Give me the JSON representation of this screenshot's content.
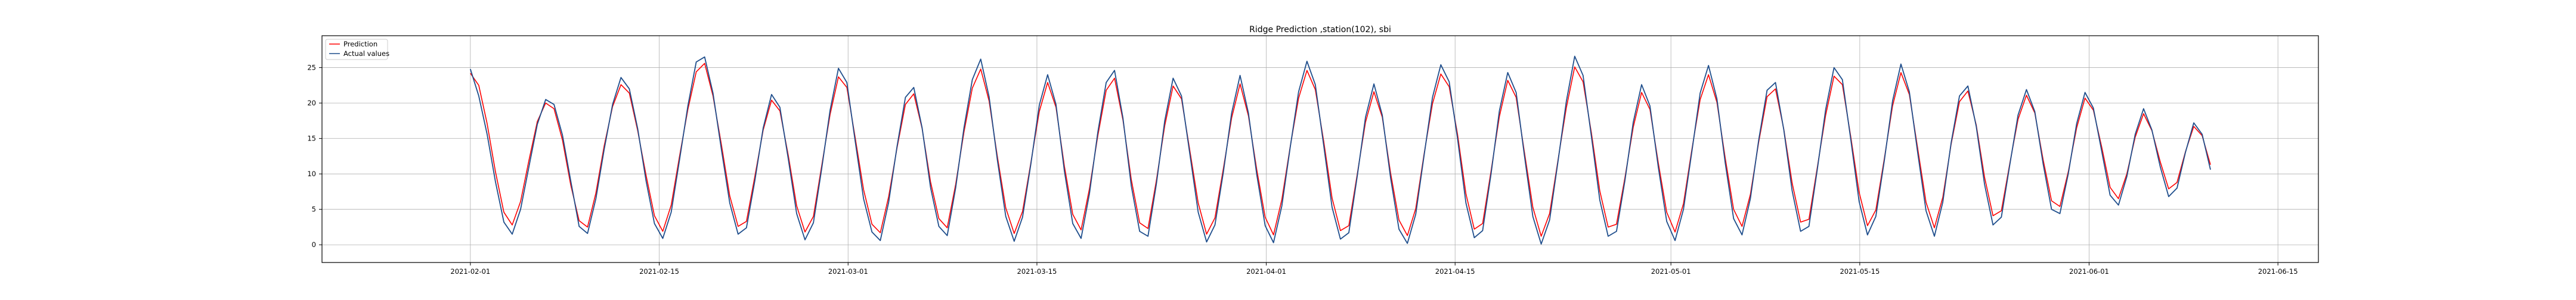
{
  "chart_data": {
    "type": "line",
    "title": "Ridge Prediction ,station(102), sbi",
    "xlabel": "",
    "ylabel": "",
    "x_range": [
      "2021-02-01",
      "2021-06-10"
    ],
    "xlim": [
      "2021-01-21",
      "2021-06-18"
    ],
    "ylim": [
      -2.5,
      29.5
    ],
    "x_ticks": [
      "2021-02-01",
      "2021-02-15",
      "2021-03-01",
      "2021-03-15",
      "2021-04-01",
      "2021-04-15",
      "2021-05-01",
      "2021-05-15",
      "2021-06-01",
      "2021-06-15"
    ],
    "y_ticks": [
      0,
      5,
      10,
      15,
      20,
      25
    ],
    "grid": true,
    "legend_position": "top-left",
    "series": [
      {
        "name": "Prediction",
        "color": "#ff0000",
        "values": [
          24.2,
          22.5,
          17.1,
          10.3,
          4.6,
          2.8,
          6.1,
          11.9,
          17.4,
          20.0,
          19.2,
          14.8,
          8.4,
          3.4,
          2.5,
          7.3,
          14.0,
          19.5,
          22.6,
          21.4,
          16.1,
          9.8,
          4.1,
          1.9,
          5.6,
          12.5,
          19.1,
          24.4,
          25.6,
          21.0,
          14.2,
          6.9,
          2.6,
          3.3,
          9.6,
          16.2,
          20.4,
          18.9,
          12.6,
          5.5,
          1.8,
          4.0,
          11.2,
          18.4,
          23.7,
          22.2,
          15.1,
          7.8,
          2.9,
          1.7,
          6.8,
          13.7,
          19.8,
          21.3,
          16.4,
          8.9,
          3.7,
          2.4,
          8.5,
          15.9,
          22.1,
          24.8,
          20.3,
          12.4,
          5.2,
          1.6,
          4.7,
          11.6,
          18.8,
          22.9,
          19.4,
          11.1,
          4.3,
          2.1,
          7.9,
          15.4,
          21.8,
          23.5,
          17.6,
          9.2,
          3.1,
          2.3,
          9.1,
          16.8,
          22.4,
          20.6,
          13.3,
          5.9,
          1.5,
          3.8,
          10.7,
          17.9,
          22.7,
          18.2,
          10.6,
          3.9,
          1.4,
          6.4,
          13.9,
          20.7,
          24.6,
          21.9,
          14.6,
          6.6,
          2.0,
          2.7,
          9.9,
          17.3,
          21.6,
          18.0,
          10.1,
          3.5,
          1.3,
          5.1,
          12.8,
          19.9,
          24.1,
          22.3,
          15.6,
          7.2,
          2.2,
          3.0,
          10.4,
          18.1,
          23.2,
          20.8,
          13.0,
          5.3,
          1.2,
          4.4,
          11.9,
          19.3,
          25.1,
          23.0,
          15.8,
          7.6,
          2.5,
          2.9,
          9.4,
          16.6,
          21.5,
          19.1,
          11.5,
          4.6,
          1.8,
          5.8,
          13.4,
          20.5,
          24.0,
          20.1,
          12.2,
          5.0,
          2.6,
          7.1,
          14.5,
          20.9,
          22.0,
          16.3,
          8.7,
          3.2,
          3.6,
          10.9,
          18.3,
          23.8,
          22.6,
          15.3,
          7.4,
          2.7,
          4.9,
          12.1,
          19.6,
          24.3,
          21.2,
          13.6,
          6.0,
          2.4,
          6.7,
          14.2,
          20.2,
          21.7,
          16.9,
          9.5,
          4.1,
          4.8,
          11.4,
          17.7,
          21.1,
          18.6,
          12.0,
          6.2,
          5.4,
          10.3,
          16.5,
          20.7,
          19.0,
          13.8,
          8.1,
          6.5,
          10.0,
          15.2,
          18.5,
          16.1,
          11.7,
          7.9,
          8.8,
          13.1,
          16.7,
          15.4,
          11.3
        ]
      },
      {
        "name": "Actual values",
        "color": "#1f4e8c",
        "values": [
          24.8,
          21.0,
          15.6,
          8.9,
          3.2,
          1.5,
          5.0,
          11.0,
          17.0,
          20.5,
          19.8,
          15.5,
          9.0,
          2.6,
          1.6,
          6.5,
          13.5,
          19.8,
          23.6,
          22.0,
          16.4,
          9.0,
          3.0,
          0.9,
          4.6,
          12.0,
          19.6,
          25.8,
          26.5,
          21.4,
          13.5,
          5.9,
          1.5,
          2.4,
          9.0,
          16.5,
          21.2,
          19.4,
          12.1,
          4.4,
          0.7,
          3.1,
          10.8,
          19.0,
          24.9,
          22.9,
          14.6,
          6.5,
          1.8,
          0.6,
          6.0,
          13.9,
          20.8,
          22.2,
          16.5,
          8.1,
          2.6,
          1.3,
          8.0,
          16.5,
          23.3,
          26.2,
          20.9,
          11.9,
          4.0,
          0.5,
          3.9,
          11.4,
          19.7,
          24.0,
          19.8,
          10.4,
          3.0,
          0.9,
          7.2,
          15.9,
          22.9,
          24.6,
          17.9,
          8.3,
          1.9,
          1.2,
          8.6,
          17.5,
          23.5,
          21.0,
          12.8,
          4.6,
          0.4,
          2.8,
          10.2,
          18.6,
          23.9,
          18.6,
          9.9,
          2.7,
          0.3,
          5.5,
          13.8,
          21.6,
          25.9,
          22.6,
          14.0,
          5.3,
          0.8,
          1.7,
          9.6,
          18.0,
          22.7,
          18.3,
          9.4,
          2.2,
          0.2,
          4.3,
          12.6,
          20.8,
          25.4,
          23.0,
          15.0,
          5.9,
          1.0,
          2.0,
          10.0,
          18.9,
          24.3,
          21.5,
          12.5,
          4.0,
          0.1,
          3.5,
          11.7,
          20.2,
          26.6,
          23.9,
          15.3,
          6.3,
          1.2,
          1.9,
          9.0,
          17.3,
          22.6,
          19.6,
          10.9,
          3.3,
          0.6,
          5.0,
          13.1,
          21.4,
          25.3,
          20.6,
          11.5,
          3.7,
          1.4,
          6.5,
          14.8,
          21.8,
          22.9,
          16.2,
          7.6,
          1.9,
          2.6,
          10.6,
          19.1,
          25.0,
          23.3,
          14.9,
          6.1,
          1.4,
          4.0,
          11.8,
          20.3,
          25.5,
          21.6,
          13.0,
          4.8,
          1.2,
          6.0,
          14.4,
          21.0,
          22.4,
          16.7,
          8.5,
          2.8,
          3.9,
          11.2,
          18.3,
          21.9,
          18.8,
          11.4,
          5.0,
          4.4,
          10.0,
          17.1,
          21.5,
          19.3,
          13.2,
          7.0,
          5.6,
          9.6,
          15.6,
          19.2,
          16.2,
          11.0,
          6.8,
          8.0,
          13.0,
          17.2,
          15.6,
          10.6
        ]
      }
    ]
  }
}
